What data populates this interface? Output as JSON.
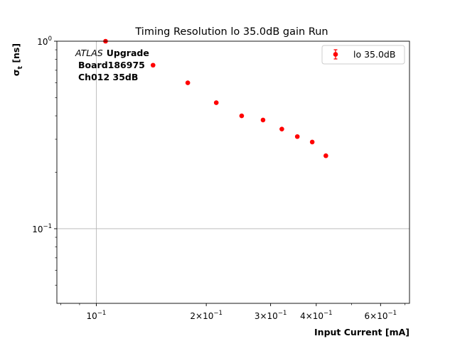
{
  "chart_data": {
    "type": "scatter",
    "title": "Timing Resolution lo 35.0dB gain Run",
    "xlabel": "Input Current [mA]",
    "ylabel_main": "σ",
    "ylabel_sub": "t",
    "ylabel_unit": " [ns]",
    "xscale": "log",
    "yscale": "log",
    "xlim": [
      0.078,
      0.72
    ],
    "ylim": [
      0.04,
      1.0
    ],
    "grid": "major",
    "x_ticks": [
      {
        "value": 0.1,
        "base": "10",
        "exp": "−1"
      },
      {
        "value": 0.2,
        "base": "2×10",
        "exp": "−1"
      },
      {
        "value": 0.3,
        "base": "3×10",
        "exp": "−1"
      },
      {
        "value": 0.4,
        "base": "4×10",
        "exp": "−1"
      },
      {
        "value": 0.6,
        "base": "6×10",
        "exp": "−1"
      }
    ],
    "y_ticks": [
      {
        "value": 0.1,
        "base": "10",
        "exp": "−1"
      },
      {
        "value": 1.0,
        "base": "10",
        "exp": "0"
      }
    ],
    "series": [
      {
        "name": "lo 35.0dB",
        "color": "#ff0000",
        "x": [
          0.106,
          0.143,
          0.178,
          0.213,
          0.25,
          0.286,
          0.322,
          0.355,
          0.39,
          0.425
        ],
        "y": [
          1.0,
          0.745,
          0.6,
          0.47,
          0.4,
          0.38,
          0.34,
          0.31,
          0.29,
          0.245
        ]
      }
    ],
    "legend_position": "top-right",
    "annotation": {
      "atlas": "ATLAS",
      "upgrade": "Upgrade",
      "board": "Board186975",
      "channel": "Ch012 35dB"
    }
  }
}
